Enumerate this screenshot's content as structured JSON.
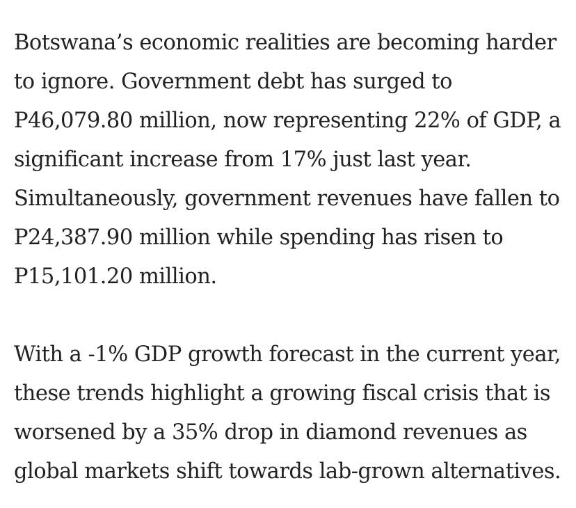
{
  "article": {
    "paragraphs": [
      {
        "lines": [
          "Botswana’s economic realities are becoming harder",
          "to ignore. Government debt has surged to",
          "P46,079.80 million, now representing 22% of GDP, a",
          "significant increase from 17% just last year.",
          "Simultaneously, government revenues have fallen to",
          "P24,387.90 million while spending has risen to",
          "P15,101.20 million."
        ]
      },
      {
        "lines": [
          "With a -1% GDP growth forecast in the current year,",
          "these trends highlight a growing fiscal crisis that is",
          "worsened by a 35% drop in diamond revenues as",
          "global markets shift towards lab-grown alternatives."
        ]
      }
    ]
  }
}
